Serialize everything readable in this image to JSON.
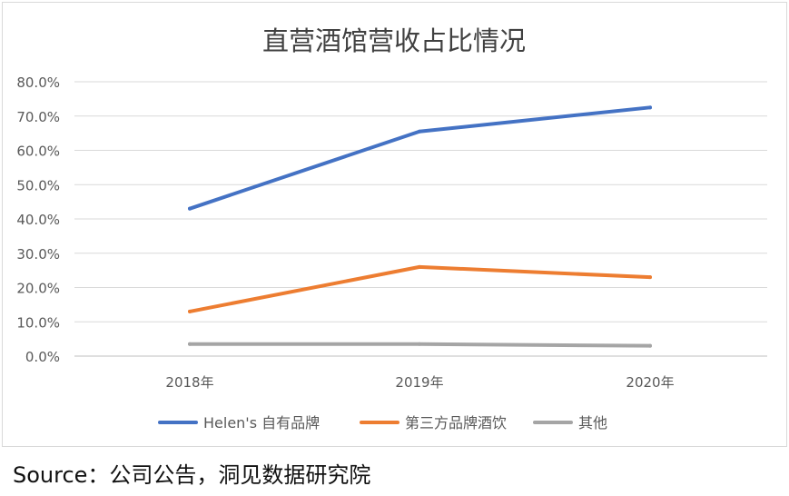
{
  "chart_data": {
    "type": "line",
    "title": "直营酒馆营收占比情况",
    "categories": [
      "2018年",
      "2019年",
      "2020年"
    ],
    "series": [
      {
        "name": "Helen's 自有品牌",
        "values": [
          43.0,
          65.5,
          72.5
        ],
        "color": "#4472c4"
      },
      {
        "name": "第三方品牌酒饮",
        "values": [
          13.0,
          26.0,
          23.0
        ],
        "color": "#ed7d31"
      },
      {
        "name": "其他",
        "values": [
          3.5,
          3.5,
          3.0
        ],
        "color": "#a5a5a5"
      }
    ],
    "yticks": [
      "0.0%",
      "10.0%",
      "20.0%",
      "30.0%",
      "40.0%",
      "50.0%",
      "60.0%",
      "70.0%",
      "80.0%"
    ],
    "ylim": [
      0,
      80
    ],
    "grid": true,
    "legend_position": "bottom",
    "xlabel": "",
    "ylabel": ""
  },
  "source": "Source：公司公告，洞见数据研究院"
}
